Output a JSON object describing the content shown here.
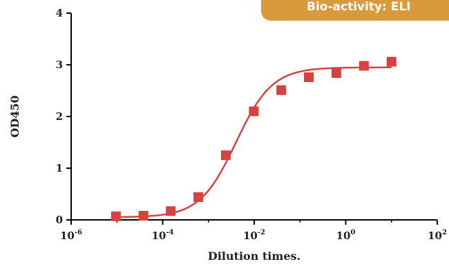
{
  "banner": {
    "text": "Bio-activity: ELI"
  },
  "colors": {
    "series": "#d9413f",
    "axis": "#000000",
    "banner": "#d99a3c"
  },
  "chart_data": {
    "type": "scatter",
    "xscale": "log",
    "xlim": [
      1e-06,
      100
    ],
    "ylim": [
      0,
      4
    ],
    "xlabel": "Dilution times.",
    "ylabel": "OD450",
    "x_ticks": [
      {
        "value": 1e-06,
        "base": "10",
        "exp": "-6"
      },
      {
        "value": 0.0001,
        "base": "10",
        "exp": "-4"
      },
      {
        "value": 0.01,
        "base": "10",
        "exp": "-2"
      },
      {
        "value": 1,
        "base": "10",
        "exp": "0"
      },
      {
        "value": 100,
        "base": "10",
        "exp": "2"
      }
    ],
    "y_ticks": [
      0,
      1,
      2,
      3,
      4
    ],
    "grid": false,
    "legend": "none",
    "series": [
      {
        "marker": "square",
        "points": [
          {
            "x": 9.5e-06,
            "y": 0.07
          },
          {
            "x": 3.8e-05,
            "y": 0.08
          },
          {
            "x": 0.00015,
            "y": 0.17
          },
          {
            "x": 0.0006,
            "y": 0.44
          },
          {
            "x": 0.0024,
            "y": 1.25
          },
          {
            "x": 0.0098,
            "y": 2.1
          },
          {
            "x": 0.039,
            "y": 2.51
          },
          {
            "x": 0.156,
            "y": 2.76
          },
          {
            "x": 0.625,
            "y": 2.84
          },
          {
            "x": 2.5,
            "y": 2.98
          },
          {
            "x": 10,
            "y": 3.06
          }
        ],
        "fit_curve": {
          "model": "4PL",
          "bottom": 0.05,
          "top": 2.95,
          "ec50": 0.004,
          "hill": 1.1,
          "x_range": [
            9.5e-06,
            10
          ]
        }
      }
    ]
  }
}
